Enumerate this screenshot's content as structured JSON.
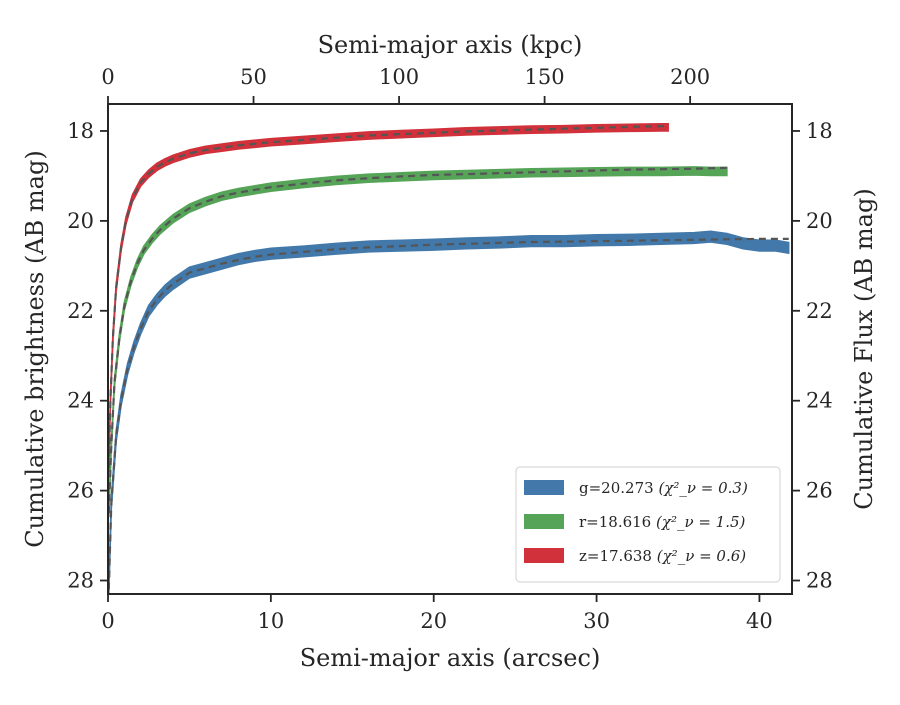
{
  "chart_data": {
    "type": "line",
    "xlabel": "Semi-major axis (arcsec)",
    "x2label": "Semi-major axis (kpc)",
    "ylabel": "Cumulative brightness (AB mag)",
    "y2label": "Cumulative Flux (AB mag)",
    "xlim": [
      0,
      42
    ],
    "x2lim": [
      0,
      235
    ],
    "ylim": [
      28.3,
      17.4
    ],
    "y_inverted": true,
    "x_ticks": [
      0,
      10,
      20,
      30,
      40
    ],
    "x2_ticks": [
      0,
      50,
      100,
      150,
      200
    ],
    "y_ticks": [
      18,
      20,
      22,
      24,
      26,
      28
    ],
    "grid": false,
    "legend_position": "bottom-right",
    "series": [
      {
        "name": "g=20.273",
        "chi2_label": "(χ²_ν = 0.3)",
        "color": "#4279aa",
        "band_width": 0.12,
        "x": [
          0.05,
          0.2,
          0.5,
          0.8,
          1.2,
          1.6,
          2.0,
          2.5,
          3.0,
          3.5,
          4.0,
          5.0,
          6.0,
          7.0,
          8.0,
          9.0,
          10.0,
          12.0,
          14.0,
          16.0,
          18.0,
          20.0,
          22.0,
          24.0,
          26.0,
          28.0,
          30.0,
          32.0,
          34.0,
          36.0,
          37.0,
          38.0,
          39.0,
          40.0,
          41.0,
          41.8
        ],
        "y": [
          28.2,
          26.3,
          24.8,
          24.0,
          23.3,
          22.8,
          22.4,
          22.0,
          21.75,
          21.55,
          21.4,
          21.15,
          21.05,
          20.95,
          20.85,
          20.78,
          20.73,
          20.68,
          20.62,
          20.57,
          20.55,
          20.53,
          20.5,
          20.48,
          20.45,
          20.45,
          20.43,
          20.42,
          20.4,
          20.38,
          20.35,
          20.4,
          20.5,
          20.55,
          20.55,
          20.6
        ],
        "model_x": [
          0.05,
          0.2,
          0.5,
          0.8,
          1.2,
          1.6,
          2.0,
          2.5,
          3.0,
          3.5,
          4.0,
          5.0,
          6.0,
          7.0,
          8.0,
          9.0,
          10.0,
          12.0,
          14.0,
          16.0,
          18.0,
          20.0,
          22.0,
          24.0,
          26.0,
          28.0,
          30.0,
          32.0,
          34.0,
          36.0,
          38.0,
          40.0,
          41.8
        ],
        "model_y": [
          28.2,
          26.3,
          24.8,
          24.0,
          23.3,
          22.8,
          22.4,
          22.0,
          21.75,
          21.55,
          21.4,
          21.15,
          21.05,
          20.95,
          20.87,
          20.8,
          20.75,
          20.69,
          20.63,
          20.59,
          20.56,
          20.53,
          20.51,
          20.49,
          20.47,
          20.46,
          20.45,
          20.44,
          20.43,
          20.42,
          20.41,
          20.4,
          20.4
        ]
      },
      {
        "name": "r=18.616",
        "chi2_label": "(χ²_ν = 1.5)",
        "color": "#55a457",
        "band_width": 0.09,
        "x": [
          0.05,
          0.2,
          0.4,
          0.7,
          1.0,
          1.4,
          1.8,
          2.2,
          2.7,
          3.2,
          4.0,
          5.0,
          6.0,
          7.0,
          8.0,
          10.0,
          12.0,
          14.0,
          16.0,
          18.0,
          20.0,
          22.0,
          24.0,
          26.0,
          28.0,
          30.0,
          32.0,
          34.0,
          36.0,
          37.0,
          38.0
        ],
        "y": [
          26.5,
          25.0,
          23.6,
          22.6,
          21.9,
          21.35,
          20.95,
          20.65,
          20.4,
          20.2,
          19.95,
          19.72,
          19.57,
          19.45,
          19.37,
          19.25,
          19.17,
          19.1,
          19.05,
          19.02,
          18.99,
          18.97,
          18.95,
          18.93,
          18.92,
          18.91,
          18.9,
          18.9,
          18.89,
          18.9,
          18.9
        ],
        "model_x": [
          0.05,
          0.2,
          0.4,
          0.7,
          1.0,
          1.4,
          1.8,
          2.2,
          2.7,
          3.2,
          4.0,
          5.0,
          6.0,
          7.0,
          8.0,
          10.0,
          12.0,
          14.0,
          16.0,
          18.0,
          20.0,
          22.0,
          24.0,
          26.0,
          28.0,
          30.0,
          32.0,
          34.0,
          36.0,
          38.0
        ],
        "model_y": [
          26.5,
          25.0,
          23.6,
          22.6,
          21.9,
          21.35,
          20.95,
          20.65,
          20.4,
          20.2,
          19.95,
          19.72,
          19.57,
          19.45,
          19.37,
          19.25,
          19.17,
          19.1,
          19.05,
          19.01,
          18.98,
          18.96,
          18.94,
          18.92,
          18.9,
          18.88,
          18.86,
          18.85,
          18.84,
          18.82
        ]
      },
      {
        "name": "z=17.638",
        "chi2_label": "(χ²_ν = 0.6)",
        "color": "#d1313a",
        "band_width": 0.08,
        "x": [
          0.05,
          0.15,
          0.3,
          0.5,
          0.8,
          1.1,
          1.5,
          2.0,
          2.5,
          3.0,
          3.5,
          4.0,
          5.0,
          6.0,
          7.0,
          8.0,
          10.0,
          12.0,
          14.0,
          16.0,
          18.0,
          20.0,
          22.0,
          24.0,
          26.0,
          28.0,
          30.0,
          32.0,
          34.0,
          34.4
        ],
        "y": [
          25.5,
          24.0,
          22.6,
          21.5,
          20.6,
          20.0,
          19.5,
          19.15,
          18.95,
          18.8,
          18.7,
          18.62,
          18.5,
          18.42,
          18.37,
          18.32,
          18.25,
          18.2,
          18.15,
          18.1,
          18.07,
          18.04,
          18.01,
          17.99,
          17.97,
          17.96,
          17.94,
          17.93,
          17.92,
          17.92
        ],
        "model_x": [
          0.05,
          0.15,
          0.3,
          0.5,
          0.8,
          1.1,
          1.5,
          2.0,
          2.5,
          3.0,
          3.5,
          4.0,
          5.0,
          6.0,
          7.0,
          8.0,
          10.0,
          12.0,
          14.0,
          16.0,
          18.0,
          20.0,
          22.0,
          24.0,
          26.0,
          28.0,
          30.0,
          32.0,
          34.4
        ],
        "model_y": [
          25.5,
          24.0,
          22.6,
          21.5,
          20.6,
          20.0,
          19.5,
          19.15,
          18.95,
          18.8,
          18.7,
          18.62,
          18.5,
          18.42,
          18.37,
          18.32,
          18.25,
          18.2,
          18.15,
          18.1,
          18.07,
          18.04,
          18.01,
          17.99,
          17.97,
          17.95,
          17.93,
          17.91,
          17.89
        ]
      }
    ],
    "model_line_style": "dashed",
    "model_line_color": "#555555"
  }
}
